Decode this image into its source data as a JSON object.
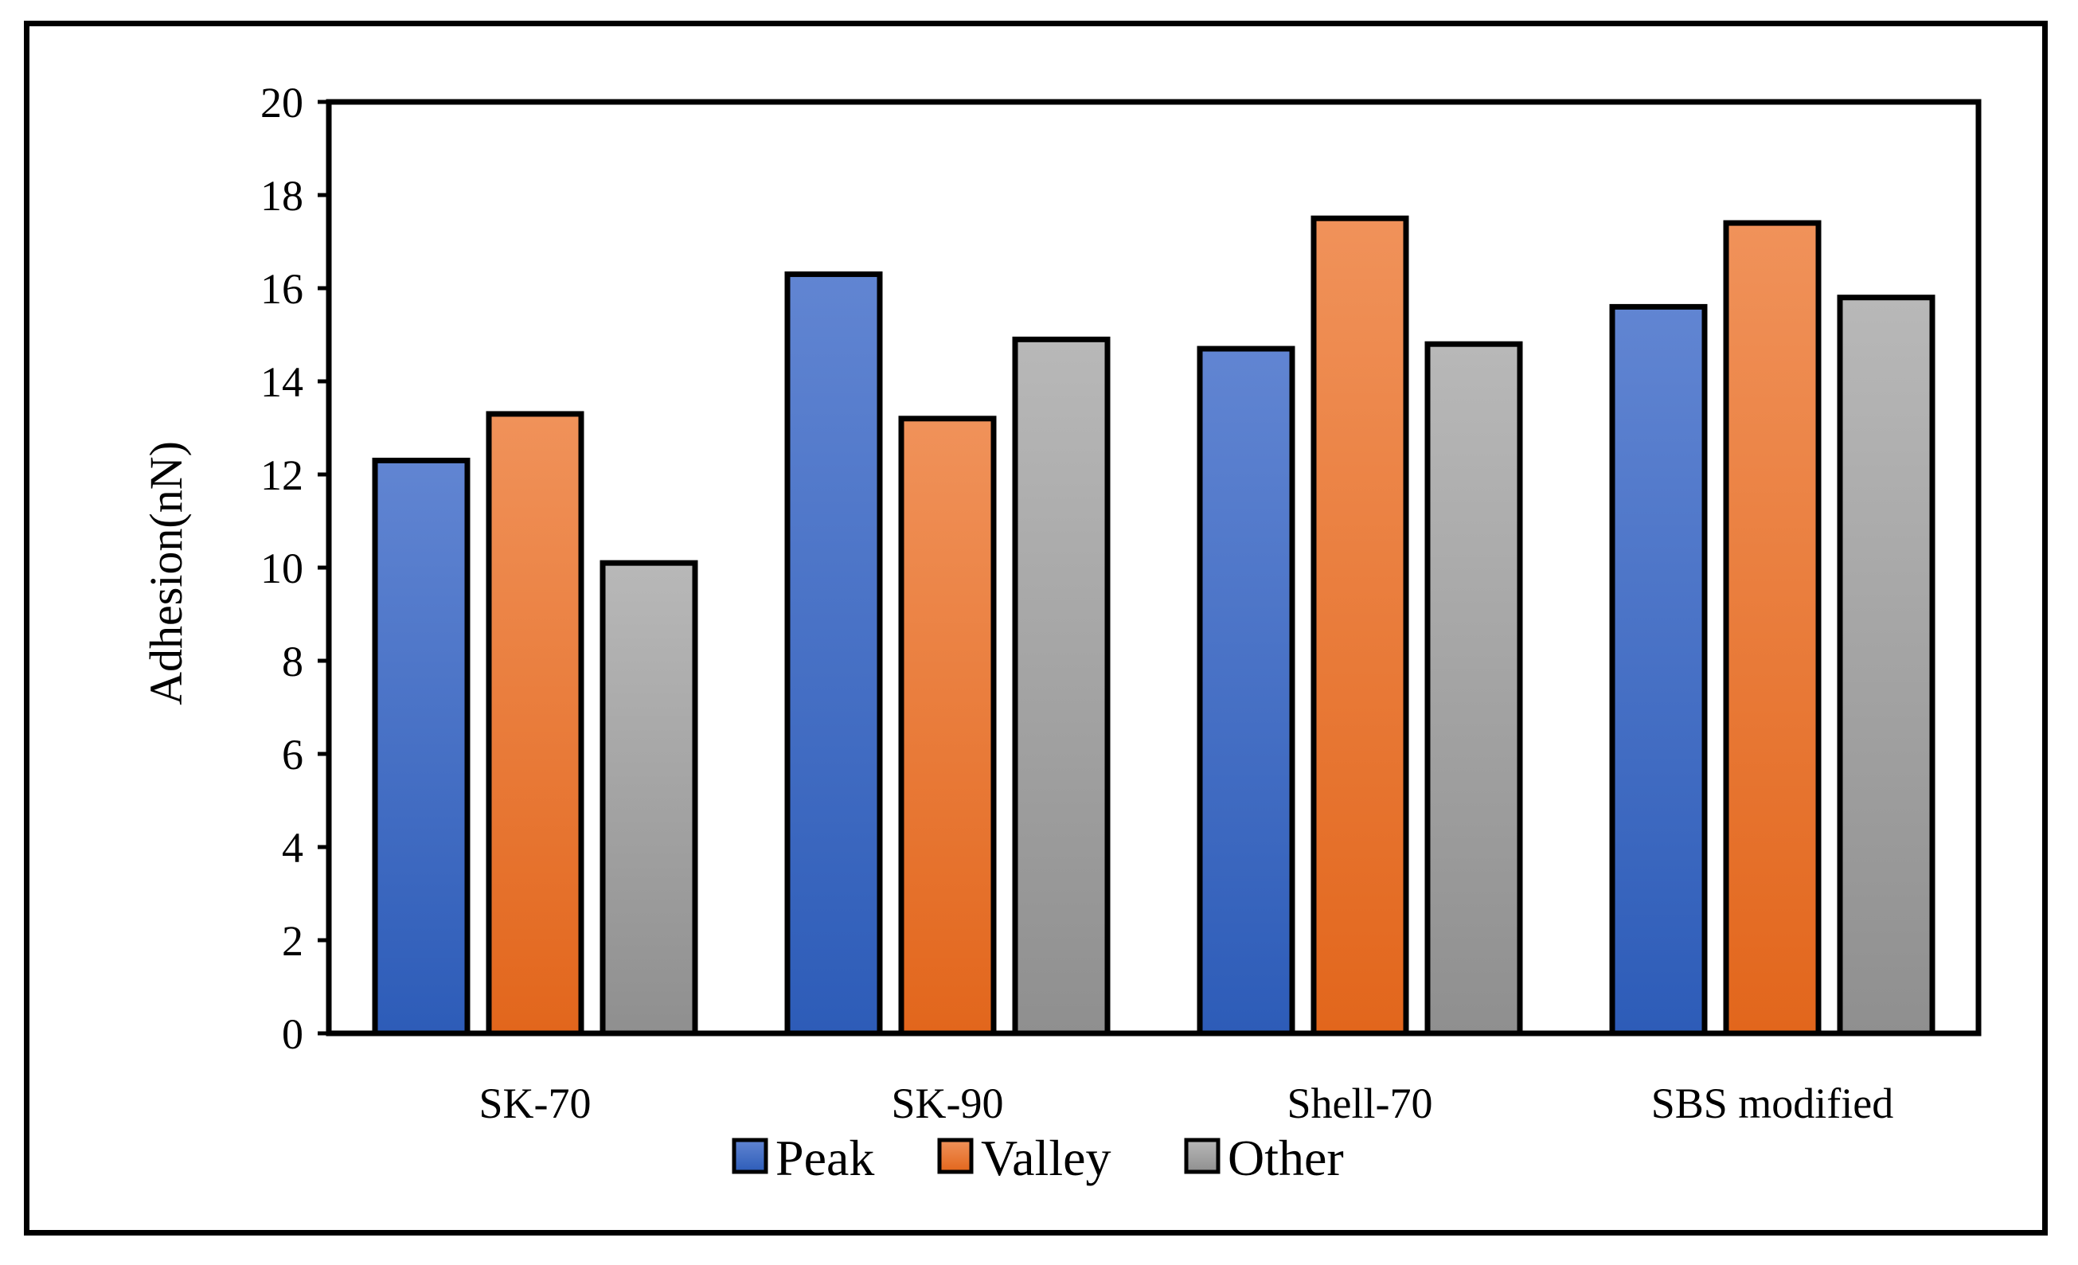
{
  "chart_data": {
    "type": "bar",
    "title": "",
    "xlabel": "",
    "ylabel": "Adhesion(nN)",
    "ylim": [
      0,
      20
    ],
    "yticks": [
      "0",
      "2",
      "4",
      "6",
      "8",
      "10",
      "12",
      "14",
      "16",
      "18",
      "20"
    ],
    "categories": [
      "SK-70",
      "SK-90",
      "Shell-70",
      "SBS modified"
    ],
    "series": [
      {
        "name": "Peak",
        "values": [
          12.3,
          16.3,
          14.7,
          15.6
        ]
      },
      {
        "name": "Valley",
        "values": [
          13.3,
          13.2,
          17.5,
          17.4
        ]
      },
      {
        "name": "Other",
        "values": [
          10.1,
          14.9,
          14.8,
          15.8
        ]
      }
    ],
    "grid": false,
    "legend_position": "bottom",
    "colors": {
      "Peak": [
        "#6185D2",
        "#2D5CB8"
      ],
      "Valley": [
        "#F0925A",
        "#E2661C"
      ],
      "Other": [
        "#B8B8B8",
        "#8F8F8F"
      ]
    }
  }
}
